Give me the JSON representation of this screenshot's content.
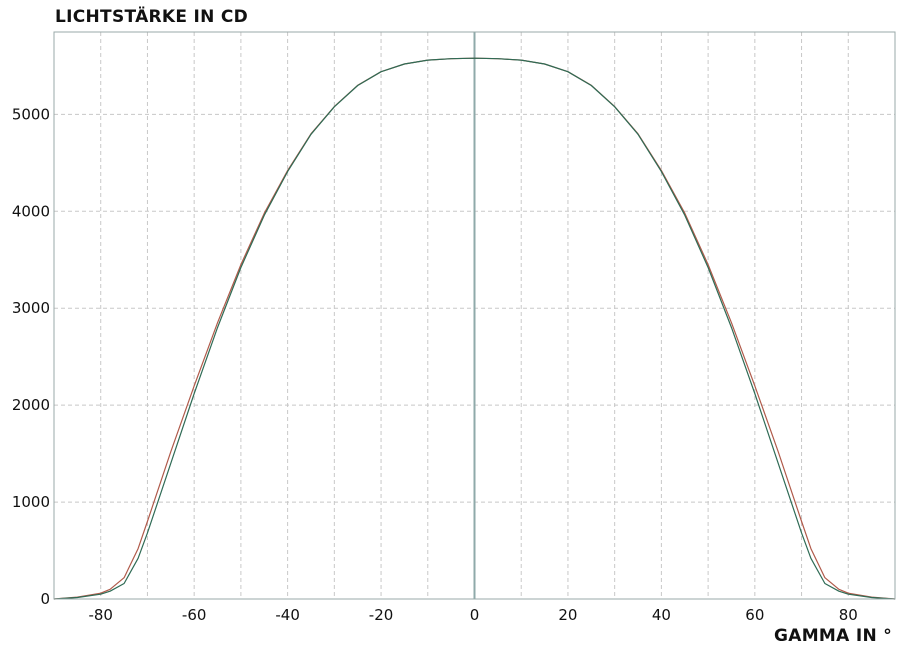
{
  "chart_data": {
    "type": "line",
    "ylabel": "LICHTSTÄRKE IN CD",
    "xlabel": "GAMMA IN °",
    "xlim": [
      -90,
      90
    ],
    "ylim": [
      0,
      5850
    ],
    "xticks": [
      -80,
      -60,
      -40,
      -20,
      0,
      20,
      40,
      60,
      80
    ],
    "xtick_labels": [
      "-80",
      "-60",
      "-40",
      "-20",
      "0",
      "20",
      "40",
      "60",
      "80"
    ],
    "yticks": [
      0,
      1000,
      2000,
      3000,
      4000,
      5000
    ],
    "ytick_labels": [
      "0",
      "1000",
      "2000",
      "3000",
      "4000",
      "5000"
    ],
    "grid": true,
    "x_gridlines": [
      -80,
      -70,
      -60,
      -50,
      -40,
      -30,
      -20,
      -10,
      10,
      20,
      30,
      40,
      50,
      60,
      70,
      80
    ],
    "y_gridlines": [
      1000,
      2000,
      3000,
      4000,
      5000
    ],
    "series": [
      {
        "color": "#b05a4a",
        "x": [
          -90,
          -85,
          -80,
          -78,
          -75,
          -72,
          -70,
          -65,
          -60,
          -55,
          -50,
          -45,
          -40,
          -35,
          -30,
          -25,
          -20,
          -15,
          -10,
          -5,
          0,
          5,
          10,
          15,
          20,
          25,
          30,
          35,
          40,
          45,
          50,
          55,
          60,
          65,
          70,
          72,
          75,
          78,
          80,
          85,
          90
        ],
        "values": [
          0,
          20,
          60,
          100,
          220,
          520,
          800,
          1520,
          2200,
          2850,
          3450,
          3980,
          4420,
          4800,
          5080,
          5300,
          5440,
          5520,
          5560,
          5575,
          5580,
          5575,
          5560,
          5520,
          5440,
          5300,
          5080,
          4800,
          4420,
          3980,
          3450,
          2850,
          2200,
          1520,
          800,
          520,
          220,
          100,
          60,
          20,
          0
        ]
      },
      {
        "color": "#2f6b55",
        "x": [
          -90,
          -85,
          -80,
          -78,
          -75,
          -72,
          -70,
          -65,
          -60,
          -55,
          -50,
          -45,
          -40,
          -35,
          -30,
          -25,
          -20,
          -15,
          -10,
          -5,
          0,
          5,
          10,
          15,
          20,
          25,
          30,
          35,
          40,
          45,
          50,
          55,
          60,
          65,
          70,
          72,
          75,
          78,
          80,
          85,
          90
        ],
        "values": [
          0,
          15,
          50,
          80,
          160,
          420,
          680,
          1400,
          2120,
          2800,
          3420,
          3960,
          4410,
          4795,
          5078,
          5298,
          5440,
          5520,
          5560,
          5575,
          5580,
          5575,
          5560,
          5520,
          5440,
          5298,
          5078,
          4795,
          4410,
          3960,
          3420,
          2800,
          2120,
          1400,
          680,
          420,
          160,
          80,
          50,
          15,
          0
        ]
      }
    ]
  }
}
